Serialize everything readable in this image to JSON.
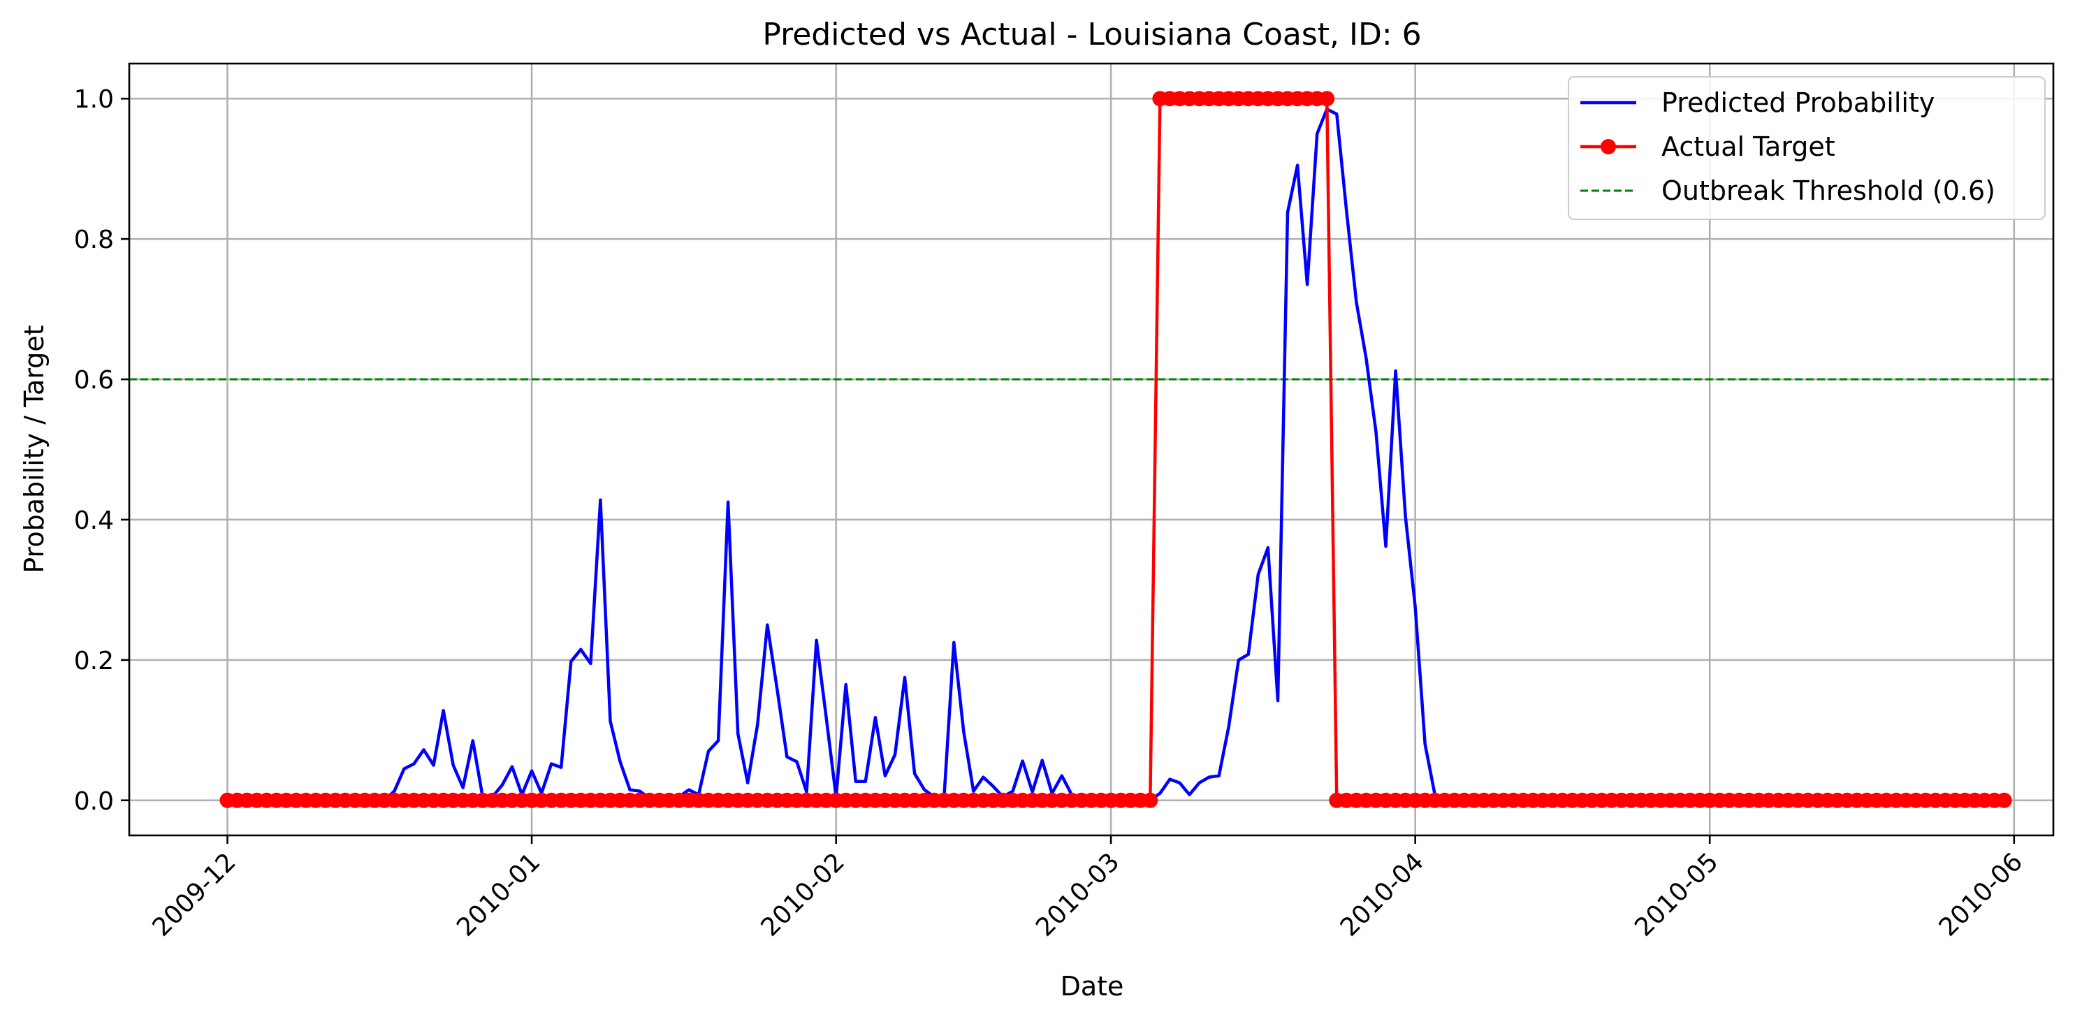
{
  "chart_data": {
    "type": "line",
    "title": "Predicted vs Actual - Louisiana Coast, ID: 6",
    "xlabel": "Date",
    "ylabel": "Probability / Target",
    "xlim": [
      "2009-11-21",
      "2010-06-05"
    ],
    "ylim": [
      -0.05,
      1.05
    ],
    "x_ticks": [
      "2009-12",
      "2010-01",
      "2010-02",
      "2010-03",
      "2010-04",
      "2010-05",
      "2010-06"
    ],
    "y_ticks": [
      "0.0",
      "0.2",
      "0.4",
      "0.6",
      "0.8",
      "1.0"
    ],
    "grid": true,
    "legend_position": "upper right",
    "colors": {
      "predicted": "#0000ff",
      "actual": "#ff0000",
      "threshold": "#008000"
    },
    "threshold": {
      "name": "Outbreak Threshold (0.6)",
      "value": 0.6
    },
    "series": [
      {
        "name": "Predicted Probability",
        "style": "line",
        "points": [
          [
            "2009-12-01",
            0
          ],
          [
            "2009-12-17",
            0
          ],
          [
            "2009-12-18",
            0.013
          ],
          [
            "2009-12-19",
            0.045
          ],
          [
            "2009-12-20",
            0.052
          ],
          [
            "2009-12-21",
            0.072
          ],
          [
            "2009-12-22",
            0.05
          ],
          [
            "2009-12-23",
            0.128
          ],
          [
            "2009-12-24",
            0.05
          ],
          [
            "2009-12-25",
            0.018
          ],
          [
            "2009-12-26",
            0.085
          ],
          [
            "2009-12-27",
            0.005
          ],
          [
            "2009-12-28",
            0.005
          ],
          [
            "2009-12-29",
            0.022
          ],
          [
            "2009-12-30",
            0.048
          ],
          [
            "2009-12-31",
            0.008
          ],
          [
            "2010-01-01",
            0.042
          ],
          [
            "2010-01-02",
            0.01
          ],
          [
            "2010-01-03",
            0.052
          ],
          [
            "2010-01-04",
            0.047
          ],
          [
            "2010-01-05",
            0.198
          ],
          [
            "2010-01-06",
            0.215
          ],
          [
            "2010-01-07",
            0.195
          ],
          [
            "2010-01-08",
            0.428
          ],
          [
            "2010-01-09",
            0.113
          ],
          [
            "2010-01-10",
            0.055
          ],
          [
            "2010-01-11",
            0.015
          ],
          [
            "2010-01-12",
            0.013
          ],
          [
            "2010-01-13",
            0.003
          ],
          [
            "2010-01-14",
            0
          ],
          [
            "2010-01-15",
            0
          ],
          [
            "2010-01-16",
            0.005
          ],
          [
            "2010-01-17",
            0.015
          ],
          [
            "2010-01-18",
            0.008
          ],
          [
            "2010-01-19",
            0.07
          ],
          [
            "2010-01-20",
            0.085
          ],
          [
            "2010-01-21",
            0.425
          ],
          [
            "2010-01-22",
            0.095
          ],
          [
            "2010-01-23",
            0.025
          ],
          [
            "2010-01-24",
            0.108
          ],
          [
            "2010-01-25",
            0.25
          ],
          [
            "2010-01-26",
            0.158
          ],
          [
            "2010-01-27",
            0.062
          ],
          [
            "2010-01-28",
            0.055
          ],
          [
            "2010-01-29",
            0.012
          ],
          [
            "2010-01-30",
            0.228
          ],
          [
            "2010-01-31",
            0.118
          ],
          [
            "2010-02-01",
            0.005
          ],
          [
            "2010-02-02",
            0.165
          ],
          [
            "2010-02-03",
            0.027
          ],
          [
            "2010-02-04",
            0.027
          ],
          [
            "2010-02-05",
            0.118
          ],
          [
            "2010-02-06",
            0.035
          ],
          [
            "2010-02-07",
            0.065
          ],
          [
            "2010-02-08",
            0.175
          ],
          [
            "2010-02-09",
            0.038
          ],
          [
            "2010-02-10",
            0.015
          ],
          [
            "2010-02-11",
            0.005
          ],
          [
            "2010-02-12",
            0.003
          ],
          [
            "2010-02-13",
            0.225
          ],
          [
            "2010-02-14",
            0.098
          ],
          [
            "2010-02-15",
            0.013
          ],
          [
            "2010-02-16",
            0.033
          ],
          [
            "2010-02-17",
            0.02
          ],
          [
            "2010-02-18",
            0.005
          ],
          [
            "2010-02-19",
            0.013
          ],
          [
            "2010-02-20",
            0.056
          ],
          [
            "2010-02-21",
            0.012
          ],
          [
            "2010-02-22",
            0.057
          ],
          [
            "2010-02-23",
            0.01
          ],
          [
            "2010-02-24",
            0.035
          ],
          [
            "2010-02-25",
            0.008
          ],
          [
            "2010-02-26",
            0
          ],
          [
            "2010-03-05",
            0
          ],
          [
            "2010-03-06",
            0.01
          ],
          [
            "2010-03-07",
            0.03
          ],
          [
            "2010-03-08",
            0.025
          ],
          [
            "2010-03-09",
            0.008
          ],
          [
            "2010-03-10",
            0.025
          ],
          [
            "2010-03-11",
            0.033
          ],
          [
            "2010-03-12",
            0.035
          ],
          [
            "2010-03-13",
            0.105
          ],
          [
            "2010-03-14",
            0.2
          ],
          [
            "2010-03-15",
            0.208
          ],
          [
            "2010-03-16",
            0.322
          ],
          [
            "2010-03-17",
            0.36
          ],
          [
            "2010-03-18",
            0.142
          ],
          [
            "2010-03-19",
            0.838
          ],
          [
            "2010-03-20",
            0.905
          ],
          [
            "2010-03-21",
            0.735
          ],
          [
            "2010-03-22",
            0.95
          ],
          [
            "2010-03-23",
            0.985
          ],
          [
            "2010-03-24",
            0.978
          ],
          [
            "2010-03-25",
            0.84
          ],
          [
            "2010-03-26",
            0.71
          ],
          [
            "2010-03-27",
            0.63
          ],
          [
            "2010-03-28",
            0.525
          ],
          [
            "2010-03-29",
            0.362
          ],
          [
            "2010-03-30",
            0.612
          ],
          [
            "2010-03-31",
            0.405
          ],
          [
            "2010-04-01",
            0.275
          ],
          [
            "2010-04-02",
            0.08
          ],
          [
            "2010-04-03",
            0.008
          ],
          [
            "2010-04-04",
            0
          ],
          [
            "2010-05-31",
            0
          ]
        ]
      },
      {
        "name": "Actual Target",
        "style": "line-marker",
        "start": "2009-12-01",
        "end": "2010-05-31",
        "one_ranges": [
          [
            "2010-03-06",
            "2010-03-23"
          ]
        ]
      }
    ]
  }
}
